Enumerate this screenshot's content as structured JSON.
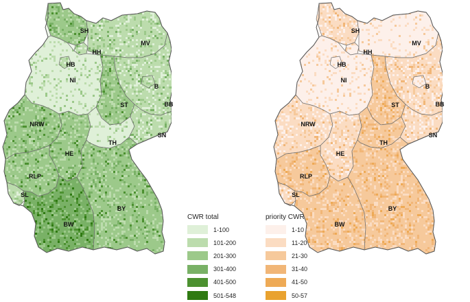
{
  "maps": [
    {
      "id": "left",
      "legend_title": "CWR total",
      "classes": [
        {
          "label": "1-100",
          "color": "#dff0d8"
        },
        {
          "label": "101-200",
          "color": "#bcdcad"
        },
        {
          "label": "201-300",
          "color": "#9cc98a"
        },
        {
          "label": "301-400",
          "color": "#79b166"
        },
        {
          "label": "401-500",
          "color": "#4c9130"
        },
        {
          "label": "501-548",
          "color": "#2f7a12"
        }
      ]
    },
    {
      "id": "right",
      "legend_title": "priority CWR",
      "classes": [
        {
          "label": "1-10",
          "color": "#fdf0ea"
        },
        {
          "label": "11-20",
          "color": "#fbdcc2"
        },
        {
          "label": "21-30",
          "color": "#f6c99b"
        },
        {
          "label": "31-40",
          "color": "#f1b677"
        },
        {
          "label": "41-50",
          "color": "#eeaa56"
        },
        {
          "label": "50-57",
          "color": "#e9a22f"
        }
      ]
    }
  ],
  "state_labels": [
    "SH",
    "HH",
    "MV",
    "HB",
    "NI",
    "B",
    "ST",
    "BB",
    "NRW",
    "SN",
    "TH",
    "HE",
    "RLP",
    "BY",
    "SL",
    "BW"
  ],
  "state_intensity": {
    "left": {
      "SH": 2,
      "HH": 1,
      "MV": 1,
      "HB": 1,
      "NI": 0,
      "B": 1,
      "ST": 2,
      "BB": 1,
      "NRW": 2,
      "SN": 1,
      "TH": 0,
      "HE": 2,
      "RLP": 2,
      "BY": 2,
      "SL": 1,
      "BW": 3
    },
    "right": {
      "SH": 1,
      "HH": 0,
      "MV": 0,
      "HB": 0,
      "NI": 0,
      "B": 0,
      "ST": 2,
      "BB": 1,
      "NRW": 1,
      "SN": 1,
      "TH": 2,
      "HE": 1,
      "RLP": 2,
      "BY": 2,
      "SL": 1,
      "BW": 2
    }
  }
}
